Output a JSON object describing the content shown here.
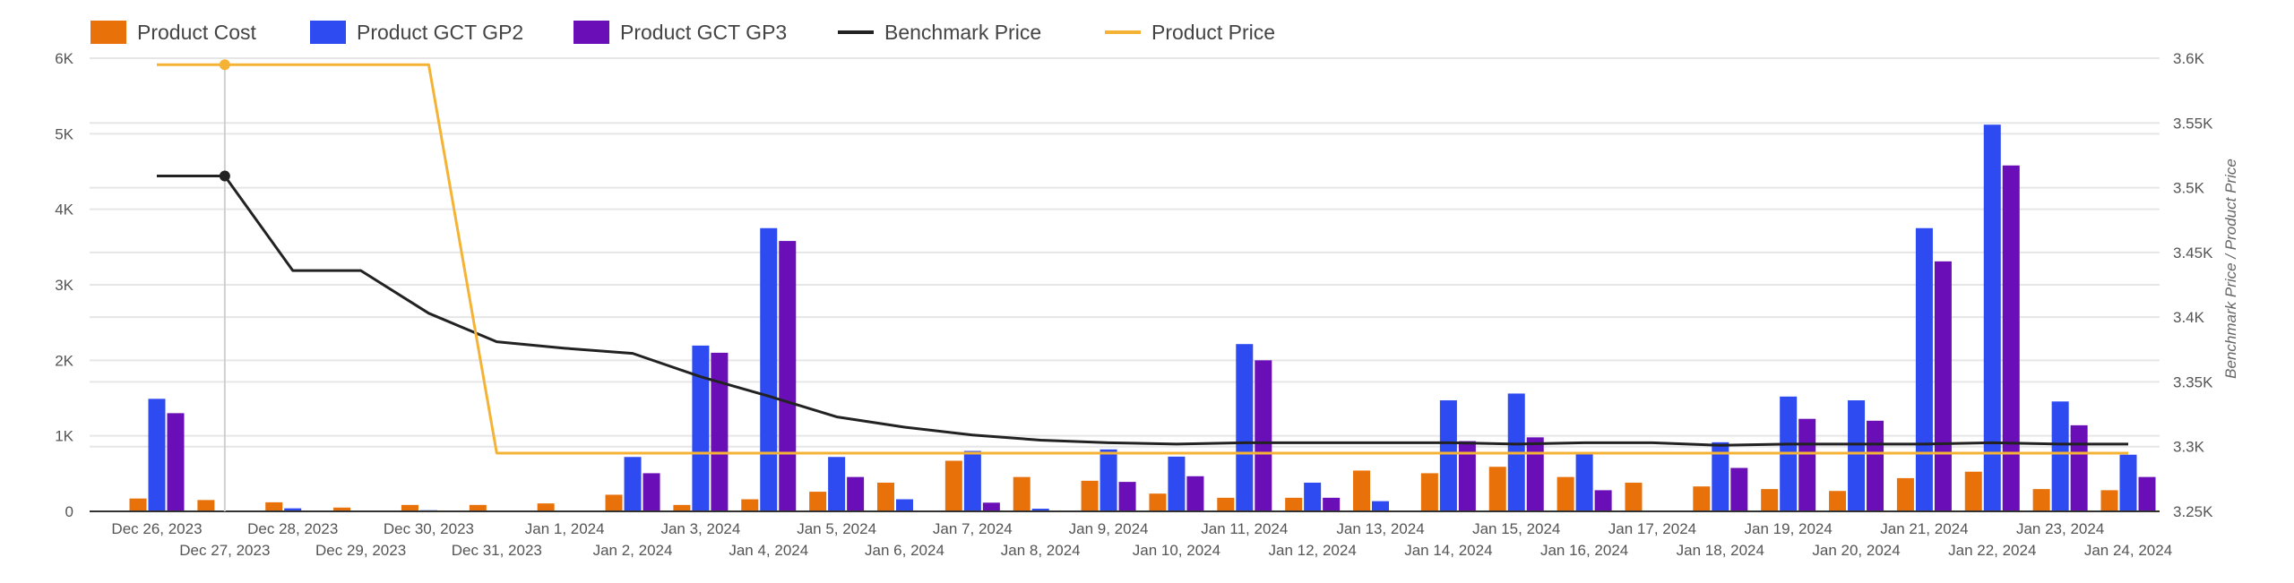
{
  "colors": {
    "product_cost": "#E8710A",
    "gp2": "#2D4BF0",
    "gp3": "#6A0FB8",
    "benchmark": "#222222",
    "product_price": "#F5B335",
    "grid": "#e6e6e6",
    "text": "#555555"
  },
  "chart_data": {
    "type": "bar",
    "categories": [
      "Dec 26, 2023",
      "Dec 27, 2023",
      "Dec 28, 2023",
      "Dec 29, 2023",
      "Dec 30, 2023",
      "Dec 31, 2023",
      "Jan 1, 2024",
      "Jan 2, 2024",
      "Jan 3, 2024",
      "Jan 4, 2024",
      "Jan 5, 2024",
      "Jan 6, 2024",
      "Jan 7, 2024",
      "Jan 8, 2024",
      "Jan 9, 2024",
      "Jan 10, 2024",
      "Jan 11, 2024",
      "Jan 12, 2024",
      "Jan 13, 2024",
      "Jan 14, 2024",
      "Jan 15, 2024",
      "Jan 16, 2024",
      "Jan 17, 2024",
      "Jan 18, 2024",
      "Jan 19, 2024",
      "Jan 20, 2024",
      "Jan 21, 2024",
      "Jan 22, 2024",
      "Jan 23, 2024",
      "Jan 24, 2024"
    ],
    "series": [
      {
        "name": "Product Cost",
        "type": "bar",
        "axis": "left",
        "values": [
          170,
          150,
          120,
          50,
          85,
          85,
          105,
          220,
          85,
          160,
          260,
          380,
          670,
          455,
          405,
          235,
          180,
          180,
          540,
          505,
          590,
          455,
          380,
          330,
          295,
          270,
          440,
          525,
          295,
          280
        ]
      },
      {
        "name": "Product GCT GP2",
        "type": "bar",
        "axis": "left",
        "values": [
          1490,
          10,
          40,
          0,
          15,
          0,
          0,
          720,
          2195,
          3750,
          720,
          160,
          800,
          35,
          820,
          725,
          2215,
          380,
          135,
          1470,
          1560,
          760,
          0,
          915,
          1520,
          1470,
          3750,
          5120,
          1455,
          750
        ]
      },
      {
        "name": "Product GCT GP3",
        "type": "bar",
        "axis": "left",
        "values": [
          1300,
          5,
          0,
          0,
          0,
          0,
          0,
          505,
          2100,
          3580,
          455,
          0,
          115,
          0,
          390,
          465,
          2000,
          180,
          0,
          930,
          980,
          280,
          0,
          575,
          1225,
          1200,
          3310,
          4580,
          1140,
          455
        ]
      },
      {
        "name": "Benchmark Price",
        "type": "line",
        "axis": "right",
        "values": [
          3509,
          3509,
          3436,
          3436,
          3403,
          3381,
          3376,
          3372,
          3354,
          3339,
          3323,
          3315,
          3309,
          3305,
          3303,
          3302,
          3303,
          3303,
          3303,
          3303,
          3302,
          3303,
          3303,
          3301,
          3302,
          3302,
          3302,
          3303,
          3302,
          3302
        ]
      },
      {
        "name": "Product Price",
        "type": "line",
        "axis": "right",
        "values": [
          3595,
          3595,
          3595,
          3595,
          3595,
          3295,
          3295,
          3295,
          3295,
          3295,
          3295,
          3295,
          3295,
          3295,
          3295,
          3295,
          3295,
          3295,
          3295,
          3295,
          3295,
          3295,
          3295,
          3295,
          3295,
          3295,
          3295,
          3295,
          3295,
          3295
        ]
      }
    ],
    "left_axis": {
      "ylim": [
        0,
        6000
      ],
      "ticks": [
        "0",
        "1K",
        "2K",
        "3K",
        "4K",
        "5K",
        "6K"
      ],
      "label": ""
    },
    "right_axis": {
      "ylim": [
        3250,
        3600
      ],
      "ticks": [
        "3.25K",
        "3.3K",
        "3.35K",
        "3.4K",
        "3.45K",
        "3.5K",
        "3.55K",
        "3.6K"
      ],
      "label": "Benchmark Price / Product Price"
    },
    "xlabel": "",
    "grid": true,
    "legend": "top-left",
    "hover_category": "Dec 27, 2023"
  }
}
